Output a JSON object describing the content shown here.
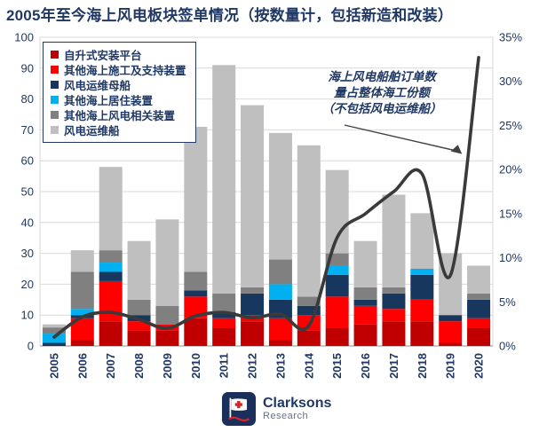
{
  "title": "2005年至今海上风电板块签单情况（按数量计，包括新造和改装）",
  "annotation": {
    "lines": [
      "海上风电船舶订单数",
      "量占整体海工份额",
      "（不包括风电运维船）"
    ]
  },
  "logo": {
    "brand": "Clarksons",
    "sub": "Research"
  },
  "colors": {
    "title_text": "#203864",
    "axis_text": "#203864",
    "gridline": "#D9D9D9",
    "axis_line": "#A6A6A6",
    "trend_line": "#3A3A3A",
    "legend_border": "#1F3864"
  },
  "chart_data": [
    {
      "type": "bar",
      "stacked": true,
      "title": "2005年至今海上风电板块签单情况（按数量计，包括新造和改装）",
      "categories": [
        "2005",
        "2006",
        "2007",
        "2008",
        "2009",
        "2010",
        "2011",
        "2012",
        "2013",
        "2014",
        "2015",
        "2016",
        "2017",
        "2018",
        "2019",
        "2020"
      ],
      "series": [
        {
          "name": "自升式安装平台",
          "color": "#C00000",
          "values": [
            0,
            2,
            8,
            5,
            5,
            9,
            6,
            8,
            2,
            5,
            6,
            7,
            8,
            8,
            1,
            6
          ]
        },
        {
          "name": "其他海上施工及支持装置",
          "color": "#FF0000",
          "values": [
            0,
            7,
            13,
            3,
            2,
            7,
            3,
            2,
            7,
            5,
            10,
            6,
            4,
            7,
            7,
            3
          ]
        },
        {
          "name": "风电运维母船",
          "color": "#17375E",
          "values": [
            1,
            1,
            3,
            2,
            0,
            2,
            2,
            7,
            6,
            3,
            7,
            2,
            5,
            8,
            2,
            6
          ]
        },
        {
          "name": "其他海上居住装置",
          "color": "#00B0F0",
          "values": [
            3,
            2,
            3,
            0,
            0,
            0,
            0,
            0,
            5,
            0,
            3,
            0,
            0,
            2,
            0,
            0
          ]
        },
        {
          "name": "其他海上风电相关装置",
          "color": "#808080",
          "values": [
            2,
            12,
            4,
            5,
            6,
            6,
            6,
            2,
            8,
            3,
            4,
            4,
            2,
            0,
            0,
            2
          ]
        },
        {
          "name": "风电运维船",
          "color": "#BFBFBF",
          "values": [
            1,
            7,
            27,
            19,
            28,
            47,
            74,
            59,
            41,
            49,
            27,
            15,
            30,
            18,
            20,
            9
          ]
        }
      ],
      "ylabel": "",
      "ylim": [
        0,
        100
      ],
      "ytick_step": 10,
      "grid": true,
      "legend_position": "top-left"
    },
    {
      "type": "line",
      "name": "海上风电船舶订单数量占整体海工份额（不包括风电运维船）",
      "categories": [
        "2005",
        "2006",
        "2007",
        "2008",
        "2009",
        "2010",
        "2011",
        "2012",
        "2013",
        "2014",
        "2015",
        "2016",
        "2017",
        "2018",
        "2019",
        "2020"
      ],
      "values": [
        1.0,
        3.3,
        3.8,
        3.0,
        2.0,
        3.4,
        3.8,
        3.2,
        3.6,
        2.3,
        12.3,
        15.0,
        17.5,
        19.5,
        8.0,
        32.7
      ],
      "axis": "right",
      "ylim": [
        0,
        35
      ],
      "ytick_step": 5,
      "ytick_format": "percent",
      "right_ticks": [
        "0%",
        "5%",
        "10%",
        "15%",
        "20%",
        "25%",
        "30%",
        "35%"
      ]
    }
  ]
}
